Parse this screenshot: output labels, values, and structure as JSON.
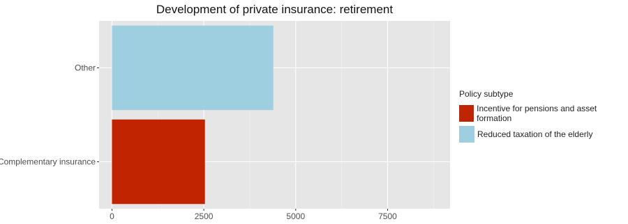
{
  "chart_data": {
    "type": "bar",
    "orientation": "horizontal",
    "title": "Development of private insurance: retirement",
    "xlabel": "",
    "ylabel": "",
    "categories": [
      "Complementary insurance",
      "Other"
    ],
    "values": [
      2530,
      4390
    ],
    "bar_colors": [
      "#c02400",
      "#9ecfe0"
    ],
    "xlim": [
      -350,
      9200
    ],
    "x_ticks": [
      0,
      2500,
      5000,
      7500
    ],
    "x_tick_labels": [
      "0",
      "2500",
      "5000",
      "7500"
    ],
    "grid": true,
    "legend": {
      "title": "Policy subtype",
      "position": "right",
      "entries": [
        {
          "label": "Incentive for pensions and asset formation",
          "color": "#c02400"
        },
        {
          "label": "Reduced taxation of the elderly",
          "color": "#9ecfe0"
        }
      ]
    }
  },
  "colors": {
    "panel": "#e6e6e6",
    "grid_major": "#ffffff",
    "grid_minor": "#f2f2f2"
  }
}
